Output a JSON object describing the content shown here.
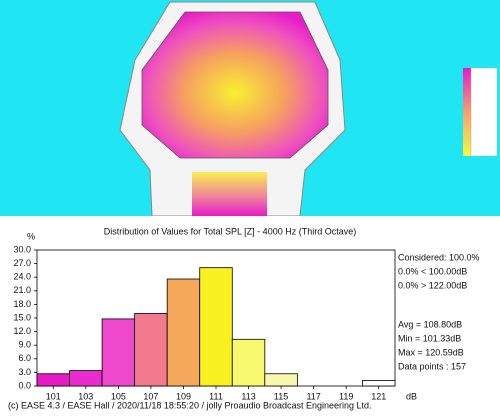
{
  "chart_data": {
    "type": "histogram",
    "title": "Distribution of Values for Total SPL [Z]  - 4000 Hz (Third Octave)",
    "ylabel": "%",
    "xlabel": "dB",
    "bins": [
      100,
      102,
      104,
      106,
      108,
      110,
      112,
      114,
      116,
      118,
      120,
      122
    ],
    "counts": [
      2.7,
      3.4,
      14.8,
      16.0,
      23.6,
      26.1,
      10.3,
      2.7,
      0,
      0,
      1.2
    ],
    "colors": [
      "#e81bc8",
      "#ea2bd0",
      "#ee48cc",
      "#f27a8e",
      "#f6a85a",
      "#f8f020",
      "#f8f86e",
      "#f8f8b0",
      "#ffffff",
      "#ffffff",
      "#ffffff"
    ],
    "xlim": [
      100,
      122
    ],
    "ylim": [
      0,
      30
    ],
    "xticks": [
      101,
      103,
      105,
      107,
      109,
      111,
      113,
      115,
      117,
      119,
      121
    ],
    "yticks": [
      {
        "value": 0,
        "label": "0.0"
      },
      {
        "value": 3,
        "label": "3.0"
      },
      {
        "value": 6,
        "label": "6.0"
      },
      {
        "value": 9,
        "label": "9.0"
      },
      {
        "value": 12,
        "label": "12.0"
      },
      {
        "value": 15,
        "label": "15.0"
      },
      {
        "value": 18,
        "label": "18.0"
      },
      {
        "value": 21,
        "label": "21.0"
      },
      {
        "value": 24,
        "label": "24.0"
      },
      {
        "value": 27,
        "label": "27.0"
      },
      {
        "value": 30,
        "label": "30.0"
      }
    ],
    "annotations": [
      "Considered: 100.0%",
      "0.0% < 100.00dB",
      "0.0% > 122.00dB",
      "Avg = 108.80dB",
      "Min = 101.33dB",
      "Max = 120.59dB",
      "Data points : 157"
    ],
    "footer": "(c) EASE 4.3 / EASE Hall / 2020/11/18 18:55:20 / jolly Proaudio Broadcast Engineering Ltd."
  }
}
